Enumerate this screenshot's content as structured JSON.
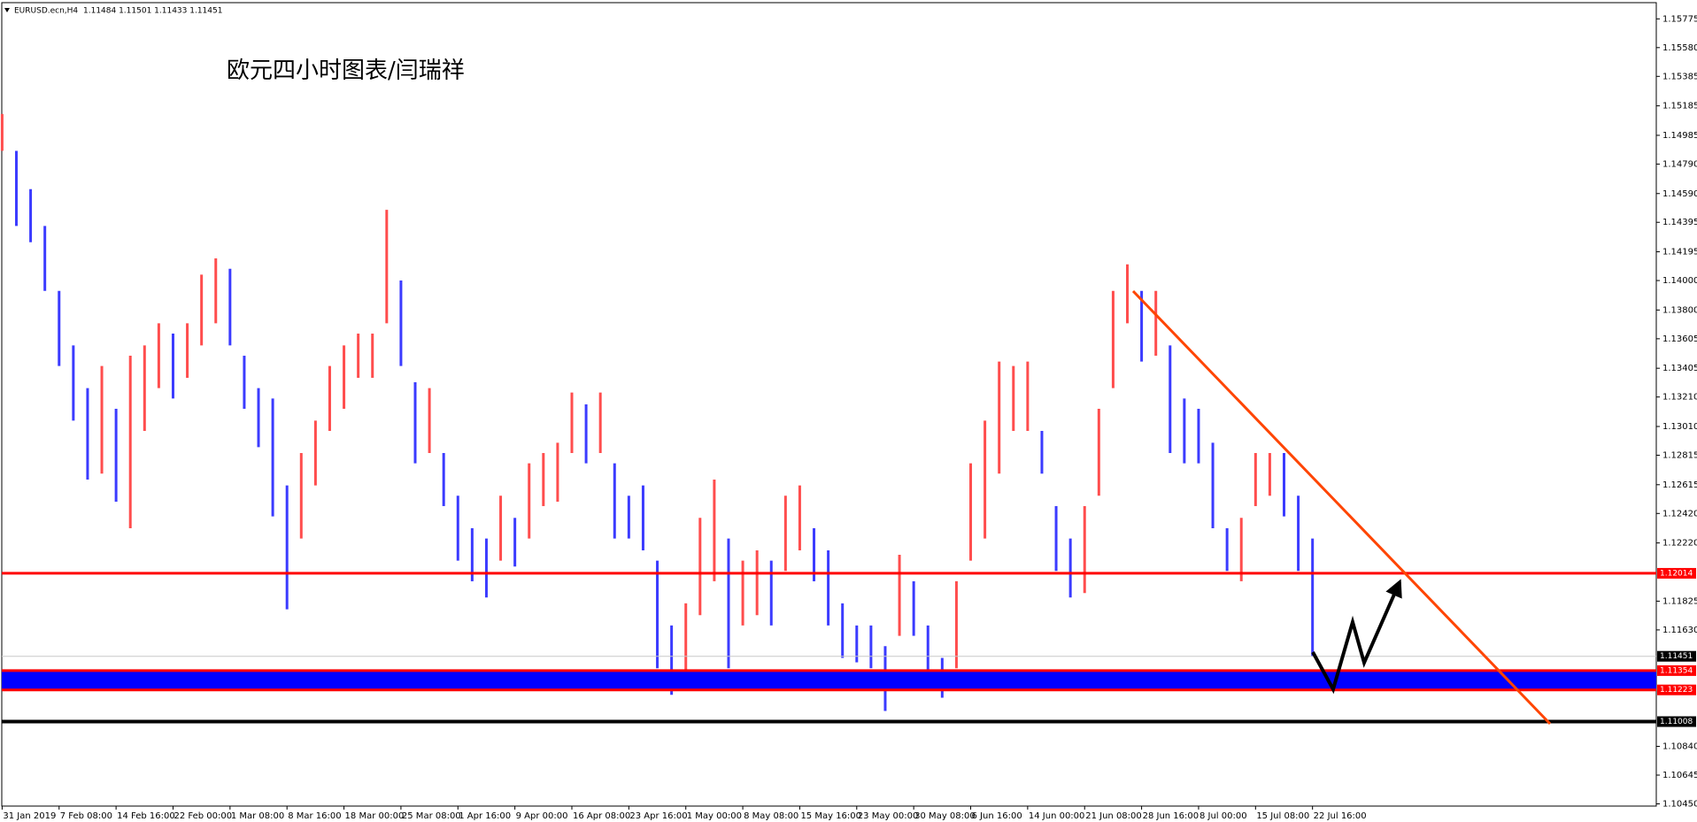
{
  "chart_data": {
    "type": "range-bar",
    "symbol": "EURUSD.ecn,H4",
    "quote": "1.11484 1.11501 1.11433 1.11451",
    "annotation": "欧元四小时图表/闫瑞祥",
    "up_color": "#ff4d4d",
    "down_color": "#3b3bff",
    "categories": [
      "31 Jan 2019",
      null,
      null,
      null,
      "7 Feb 08:00",
      null,
      null,
      null,
      "14 Feb 16:00",
      null,
      null,
      null,
      "22 Feb 00:00",
      null,
      null,
      null,
      "1 Mar 08:00",
      null,
      null,
      null,
      "8 Mar 16:00",
      null,
      null,
      null,
      "18 Mar 00:00",
      null,
      null,
      null,
      "25 Mar 08:00",
      null,
      null,
      null,
      "1 Apr 16:00",
      null,
      null,
      null,
      "9 Apr 00:00",
      null,
      null,
      null,
      "16 Apr 08:00",
      null,
      null,
      null,
      "23 Apr 16:00",
      null,
      null,
      null,
      "1 May 00:00",
      null,
      null,
      null,
      "8 May 08:00",
      null,
      null,
      null,
      "15 May 16:00",
      null,
      null,
      null,
      "23 May 00:00",
      null,
      null,
      null,
      "30 May 08:00",
      null,
      null,
      null,
      "6 Jun 16:00",
      null,
      null,
      null,
      "14 Jun 00:00",
      null,
      null,
      null,
      "21 Jun 08:00",
      null,
      null,
      null,
      "28 Jun 16:00",
      null,
      null,
      null,
      "8 Jul 00:00",
      null,
      null,
      null,
      "15 Jul 08:00",
      null,
      null,
      null,
      "22 Jul 16:00"
    ],
    "high": [
      1.1513,
      1.1488,
      1.1462,
      1.1437,
      1.1393,
      1.1356,
      1.1327,
      1.1342,
      1.1313,
      1.1349,
      1.1356,
      1.1371,
      1.1364,
      1.1371,
      1.1404,
      1.1415,
      1.1408,
      1.1349,
      1.1327,
      1.132,
      1.1261,
      1.1283,
      1.1305,
      1.1342,
      1.1356,
      1.1364,
      1.1364,
      1.1448,
      1.14,
      1.1331,
      1.1327,
      1.1283,
      1.1254,
      1.1232,
      1.1225,
      1.1254,
      1.1239,
      1.1276,
      1.1283,
      1.129,
      1.1324,
      1.1316,
      1.1324,
      1.1276,
      1.1254,
      1.1261,
      1.121,
      1.1166,
      1.1181,
      1.1239,
      1.1265,
      1.1225,
      1.121,
      1.1217,
      1.121,
      1.1254,
      1.1261,
      1.1232,
      1.1217,
      1.1181,
      1.1166,
      1.1166,
      1.1152,
      1.1214,
      1.1196,
      1.1166,
      1.1144,
      1.1196,
      1.1276,
      1.1305,
      1.1345,
      1.1342,
      1.1345,
      1.1298,
      1.1247,
      1.1225,
      1.1247,
      1.1313,
      1.1393,
      1.1411,
      1.1393,
      1.1393,
      1.1356,
      1.132,
      1.1313,
      1.129,
      1.1232,
      1.1239,
      1.1283,
      1.1283,
      1.1283,
      1.1254,
      1.1225
    ],
    "low": [
      1.1488,
      1.1437,
      1.1426,
      1.1393,
      1.1342,
      1.1305,
      1.1265,
      1.1269,
      1.125,
      1.1232,
      1.1298,
      1.1327,
      1.132,
      1.1334,
      1.1356,
      1.1371,
      1.1356,
      1.1313,
      1.1287,
      1.124,
      1.1177,
      1.1225,
      1.1261,
      1.1298,
      1.1313,
      1.1334,
      1.1334,
      1.1371,
      1.1342,
      1.1276,
      1.1283,
      1.1247,
      1.121,
      1.1196,
      1.1185,
      1.121,
      1.1206,
      1.1225,
      1.1247,
      1.125,
      1.1283,
      1.1276,
      1.1283,
      1.1225,
      1.1225,
      1.1217,
      1.1137,
      1.1119,
      1.1123,
      1.1173,
      1.1196,
      1.1137,
      1.1166,
      1.1173,
      1.1166,
      1.1203,
      1.1217,
      1.1196,
      1.1166,
      1.1144,
      1.1141,
      1.1137,
      1.1108,
      1.1159,
      1.1159,
      1.113,
      1.1117,
      1.1137,
      1.121,
      1.1225,
      1.1269,
      1.1298,
      1.1298,
      1.1269,
      1.1203,
      1.1185,
      1.1188,
      1.1254,
      1.1327,
      1.1371,
      1.1345,
      1.1349,
      1.1283,
      1.1276,
      1.1276,
      1.1232,
      1.1203,
      1.1196,
      1.1247,
      1.1254,
      1.124,
      1.1203,
      1.1145
    ],
    "ylim": [
      1.10435,
      1.15885
    ],
    "yticks": [
      1.15775,
      {
        "value": 1.1558,
        "label": "1.15580"
      },
      1.15385,
      1.15185,
      1.14985,
      {
        "value": 1.1479,
        "label": "1.14790"
      },
      {
        "value": 1.1459,
        "label": "1.14590"
      },
      1.14395,
      1.14195,
      {
        "value": 1.14,
        "label": "1.14000"
      },
      {
        "value": 1.138,
        "label": "1.13800"
      },
      1.13605,
      1.13405,
      {
        "value": 1.1321,
        "label": "1.13210"
      },
      {
        "value": 1.1301,
        "label": "1.13010"
      },
      1.12815,
      1.12615,
      {
        "value": 1.1242,
        "label": "1.12420"
      },
      {
        "value": 1.1222,
        "label": "1.12220"
      },
      1.11825,
      {
        "value": 1.1163,
        "label": "1.11630"
      },
      {
        "value": 1.1084,
        "label": "1.10840"
      },
      1.10645,
      {
        "value": 1.1045,
        "label": "1.10450"
      }
    ],
    "zone": {
      "from": 1.11223,
      "to": 1.11354,
      "color": "#0000ff"
    },
    "levels": [
      {
        "value": 1.12014,
        "color": "#ff0000",
        "box": "#ff0000",
        "width": 3
      },
      {
        "value": 1.11451,
        "color": "#c8c8c8",
        "box": "#000000",
        "width": 1
      },
      {
        "value": 1.11354,
        "color": "#ff0000",
        "box": "#ff0000",
        "width": 3
      },
      {
        "value": 1.11223,
        "color": "#ff0000",
        "box": "#ff0000",
        "width": 3
      },
      {
        "value": 1.11008,
        "color": "#000000",
        "box": "#000000",
        "width": 4
      }
    ]
  }
}
